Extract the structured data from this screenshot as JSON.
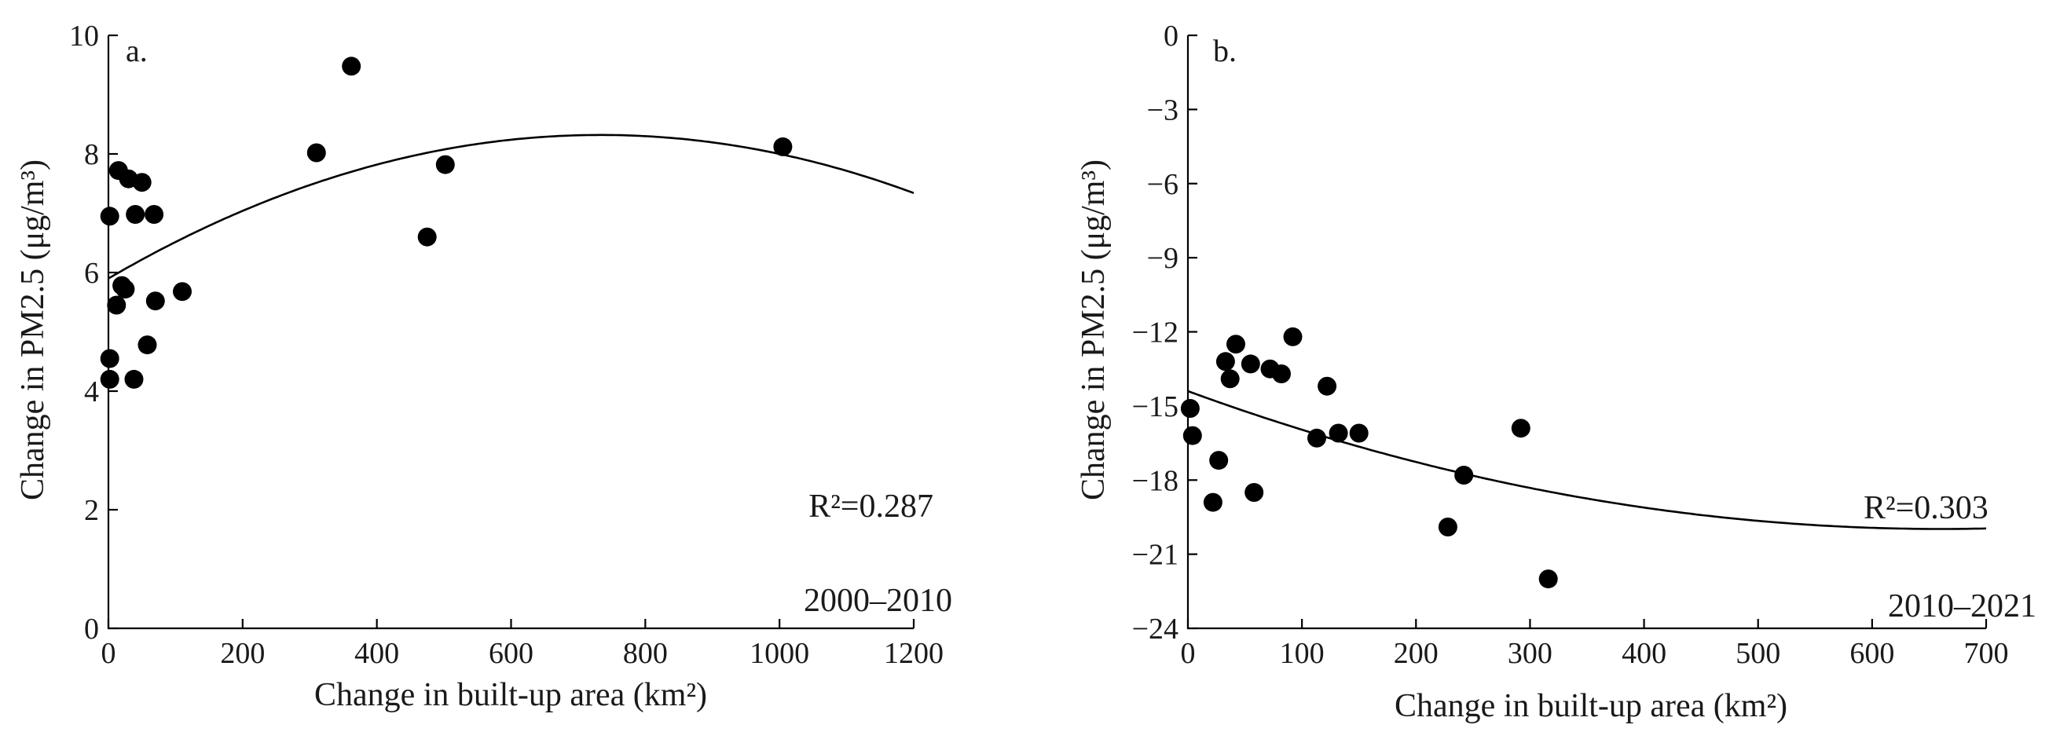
{
  "chart_data": [
    {
      "type": "scatter",
      "panel_label": "a.",
      "xlabel": "Change in built-up area (km²)",
      "ylabel": "Change in PM2.5 (μg/m³)",
      "xlim": [
        0,
        1200
      ],
      "ylim": [
        0,
        10
      ],
      "xticks": [
        0,
        200,
        400,
        600,
        800,
        1000,
        1200
      ],
      "yticks": [
        0,
        2,
        4,
        6,
        8,
        10
      ],
      "xtick_labels": [
        "0",
        "200",
        "400",
        "600",
        "800",
        "1000",
        "1200"
      ],
      "ytick_labels": [
        "0",
        "2",
        "4",
        "6",
        "8",
        "10"
      ],
      "r2_text": "R²=0.287",
      "period_text": "2000–2010",
      "fit": {
        "type": "quadratic",
        "coefficients": [
          5.9,
          0.0066,
          -4.5e-06
        ]
      },
      "points": [
        {
          "x": 2,
          "y": 4.2
        },
        {
          "x": 2,
          "y": 4.55
        },
        {
          "x": 2,
          "y": 6.95
        },
        {
          "x": 12,
          "y": 5.45
        },
        {
          "x": 15,
          "y": 7.72
        },
        {
          "x": 20,
          "y": 5.78
        },
        {
          "x": 25,
          "y": 5.72
        },
        {
          "x": 30,
          "y": 7.58
        },
        {
          "x": 38,
          "y": 4.2
        },
        {
          "x": 40,
          "y": 6.98
        },
        {
          "x": 50,
          "y": 7.52
        },
        {
          "x": 58,
          "y": 4.78
        },
        {
          "x": 68,
          "y": 6.98
        },
        {
          "x": 70,
          "y": 5.52
        },
        {
          "x": 110,
          "y": 5.68
        },
        {
          "x": 310,
          "y": 8.02
        },
        {
          "x": 362,
          "y": 9.48
        },
        {
          "x": 475,
          "y": 6.6
        },
        {
          "x": 502,
          "y": 7.82
        },
        {
          "x": 1005,
          "y": 8.12
        }
      ]
    },
    {
      "type": "scatter",
      "panel_label": "b.",
      "xlabel": "Change in built-up area (km²)",
      "ylabel": "Change in PM2.5 (μg/m³)",
      "xlim": [
        0,
        700
      ],
      "ylim": [
        -24,
        0
      ],
      "xticks": [
        0,
        100,
        200,
        300,
        400,
        500,
        600,
        700
      ],
      "yticks": [
        0,
        -3,
        -6,
        -9,
        -12,
        -15,
        -18,
        -21,
        -24
      ],
      "xtick_labels": [
        "0",
        "100",
        "200",
        "300",
        "400",
        "500",
        "600",
        "700"
      ],
      "ytick_labels": [
        "0",
        "−3",
        "−6",
        "−9",
        "−12",
        "−15",
        "−18",
        "−21",
        "−24"
      ],
      "r2_text": "R²=0.303",
      "period_text": "2010–2021",
      "fit": {
        "type": "quadratic",
        "coefficients": [
          -14.4,
          -0.0169,
          1.28e-05
        ]
      },
      "points": [
        {
          "x": 2,
          "y": -15.1
        },
        {
          "x": 4,
          "y": -16.2
        },
        {
          "x": 22,
          "y": -18.9
        },
        {
          "x": 27,
          "y": -17.2
        },
        {
          "x": 33,
          "y": -13.2
        },
        {
          "x": 37,
          "y": -13.9
        },
        {
          "x": 42,
          "y": -12.5
        },
        {
          "x": 55,
          "y": -13.3
        },
        {
          "x": 58,
          "y": -18.5
        },
        {
          "x": 72,
          "y": -13.5
        },
        {
          "x": 82,
          "y": -13.7
        },
        {
          "x": 92,
          "y": -12.2
        },
        {
          "x": 113,
          "y": -16.3
        },
        {
          "x": 122,
          "y": -14.2
        },
        {
          "x": 132,
          "y": -16.1
        },
        {
          "x": 150,
          "y": -16.1
        },
        {
          "x": 228,
          "y": -19.9
        },
        {
          "x": 242,
          "y": -17.8
        },
        {
          "x": 292,
          "y": -15.9
        },
        {
          "x": 316,
          "y": -22.0
        }
      ]
    }
  ]
}
